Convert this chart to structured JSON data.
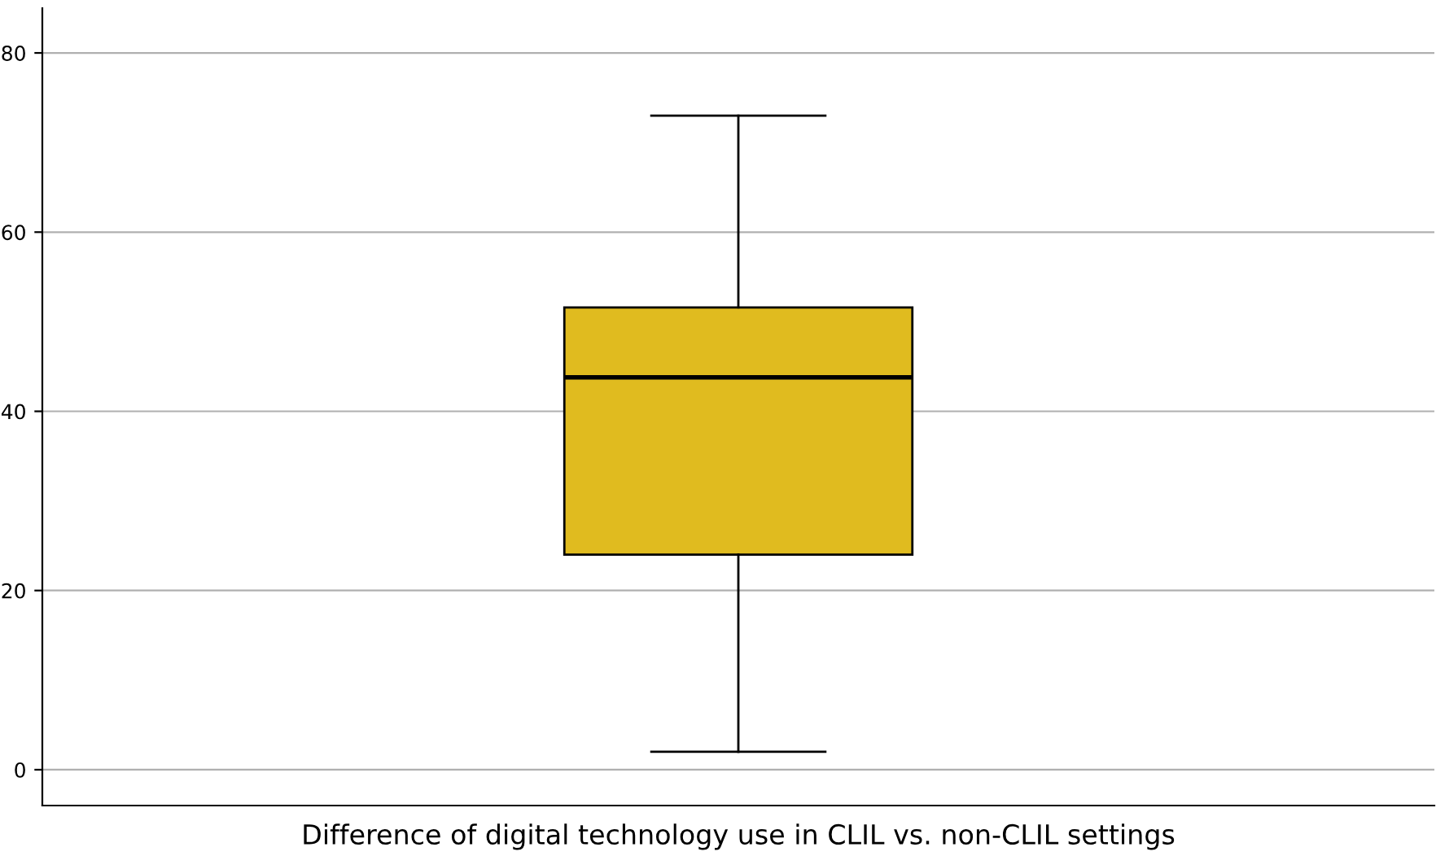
{
  "chart_data": {
    "type": "box",
    "categories": [
      "Difference of digital technology use in CLIL vs. non-CLIL settings"
    ],
    "boxes": [
      {
        "low": 2,
        "q1": 24,
        "median": 43.8,
        "q3": 51.6,
        "high": 73
      }
    ],
    "color": "#e0bb1f",
    "ylim": [
      -4,
      85
    ],
    "yticks": [
      0,
      20,
      40,
      60,
      80
    ],
    "grid": "y"
  }
}
